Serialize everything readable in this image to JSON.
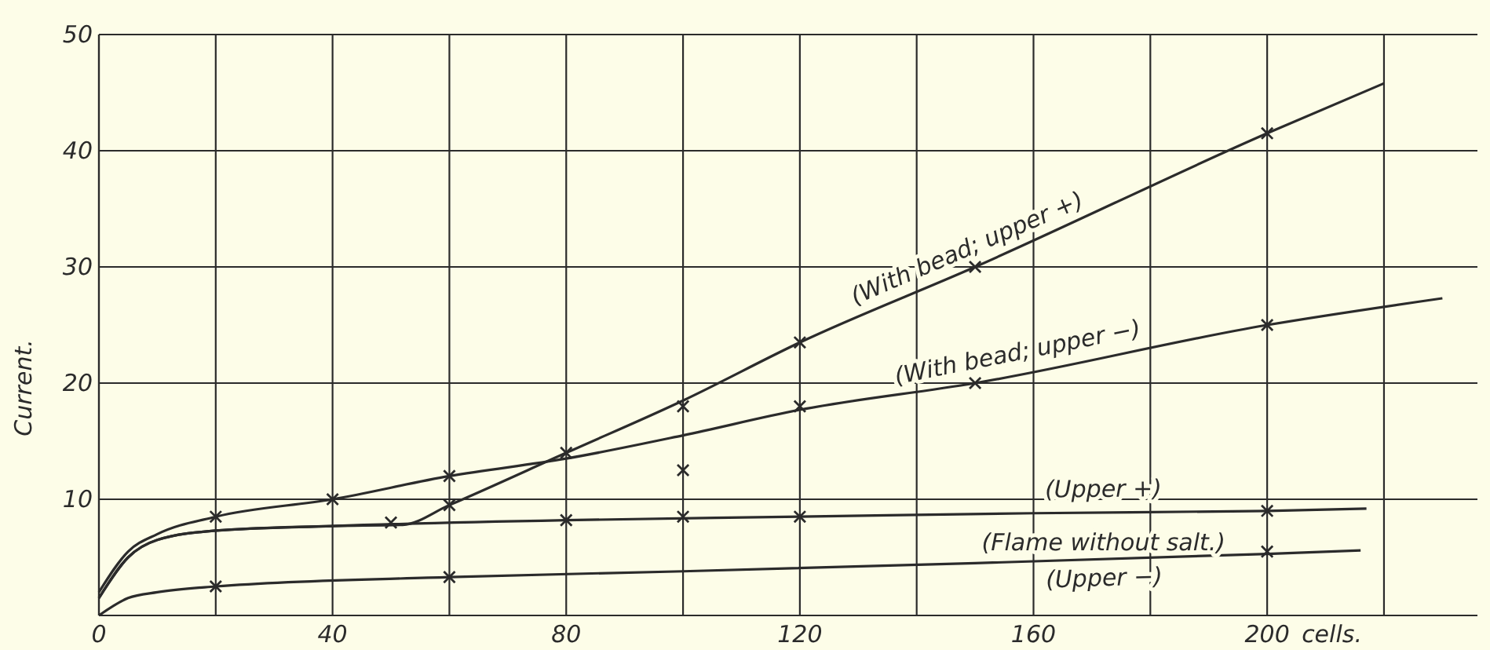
{
  "chart_data": {
    "type": "line",
    "ylabel": "Current.",
    "xlabel": "cells.",
    "xlim": [
      0,
      236
    ],
    "ylim": [
      0,
      50
    ],
    "xticks": [
      0,
      {
        "value": 20,
        "label": null
      },
      40,
      {
        "value": 60,
        "label": null
      },
      80,
      {
        "value": 100,
        "label": null
      },
      120,
      {
        "value": 140,
        "label": null
      },
      160,
      {
        "value": 180,
        "label": null
      },
      200,
      {
        "value": 220,
        "label": null
      }
    ],
    "yticks": [
      10,
      20,
      30,
      40,
      50
    ],
    "grid": true,
    "marker": "none",
    "line_style": "solid",
    "series": [
      {
        "name": "(With bead; upper +)",
        "color": "#2b2b2b",
        "x": [
          0,
          5,
          10,
          20,
          40,
          52,
          60,
          80,
          100,
          120,
          150,
          200,
          220
        ],
        "values": [
          1.5,
          5,
          6.5,
          7.3,
          7.7,
          7.8,
          9.5,
          14,
          18.5,
          23.5,
          30,
          41.5,
          45.8
        ]
      },
      {
        "name": "(With bead; upper −)",
        "color": "#2b2b2b",
        "x": [
          0,
          5,
          10,
          20,
          40,
          60,
          80,
          100,
          120,
          150,
          200,
          230
        ],
        "values": [
          2,
          5.5,
          7,
          8.5,
          10,
          12,
          13.5,
          15.5,
          17.7,
          20,
          25,
          27.3
        ]
      },
      {
        "name": "(Upper +)",
        "color": "#2b2b2b",
        "x": [
          0,
          5,
          10,
          20,
          40,
          80,
          120,
          160,
          200,
          217
        ],
        "values": [
          1.5,
          5,
          6.5,
          7.3,
          7.7,
          8.2,
          8.5,
          8.8,
          9,
          9.2
        ]
      },
      {
        "name": "(Upper −)",
        "color": "#2b2b2b",
        "x": [
          0,
          5,
          10,
          20,
          60,
          100,
          150,
          200,
          216
        ],
        "values": [
          0,
          1.5,
          2,
          2.5,
          3.3,
          3.8,
          4.5,
          5.3,
          5.6
        ]
      },
      {
        "type": "scatter",
        "marker": "cross",
        "color": "#2b2b2b",
        "x": [
          20,
          40,
          60,
          80,
          100,
          100,
          120,
          120,
          150,
          150,
          200,
          200,
          50,
          60,
          80,
          100,
          120,
          200,
          20,
          60,
          200
        ],
        "values": [
          8.5,
          10,
          12,
          14,
          18,
          12.5,
          23.5,
          18,
          30,
          20,
          41.5,
          25,
          8,
          9.5,
          8.2,
          8.5,
          8.5,
          9,
          2.5,
          3.3,
          5.5
        ]
      }
    ],
    "annotations": [
      "(Flame without salt.)"
    ]
  }
}
